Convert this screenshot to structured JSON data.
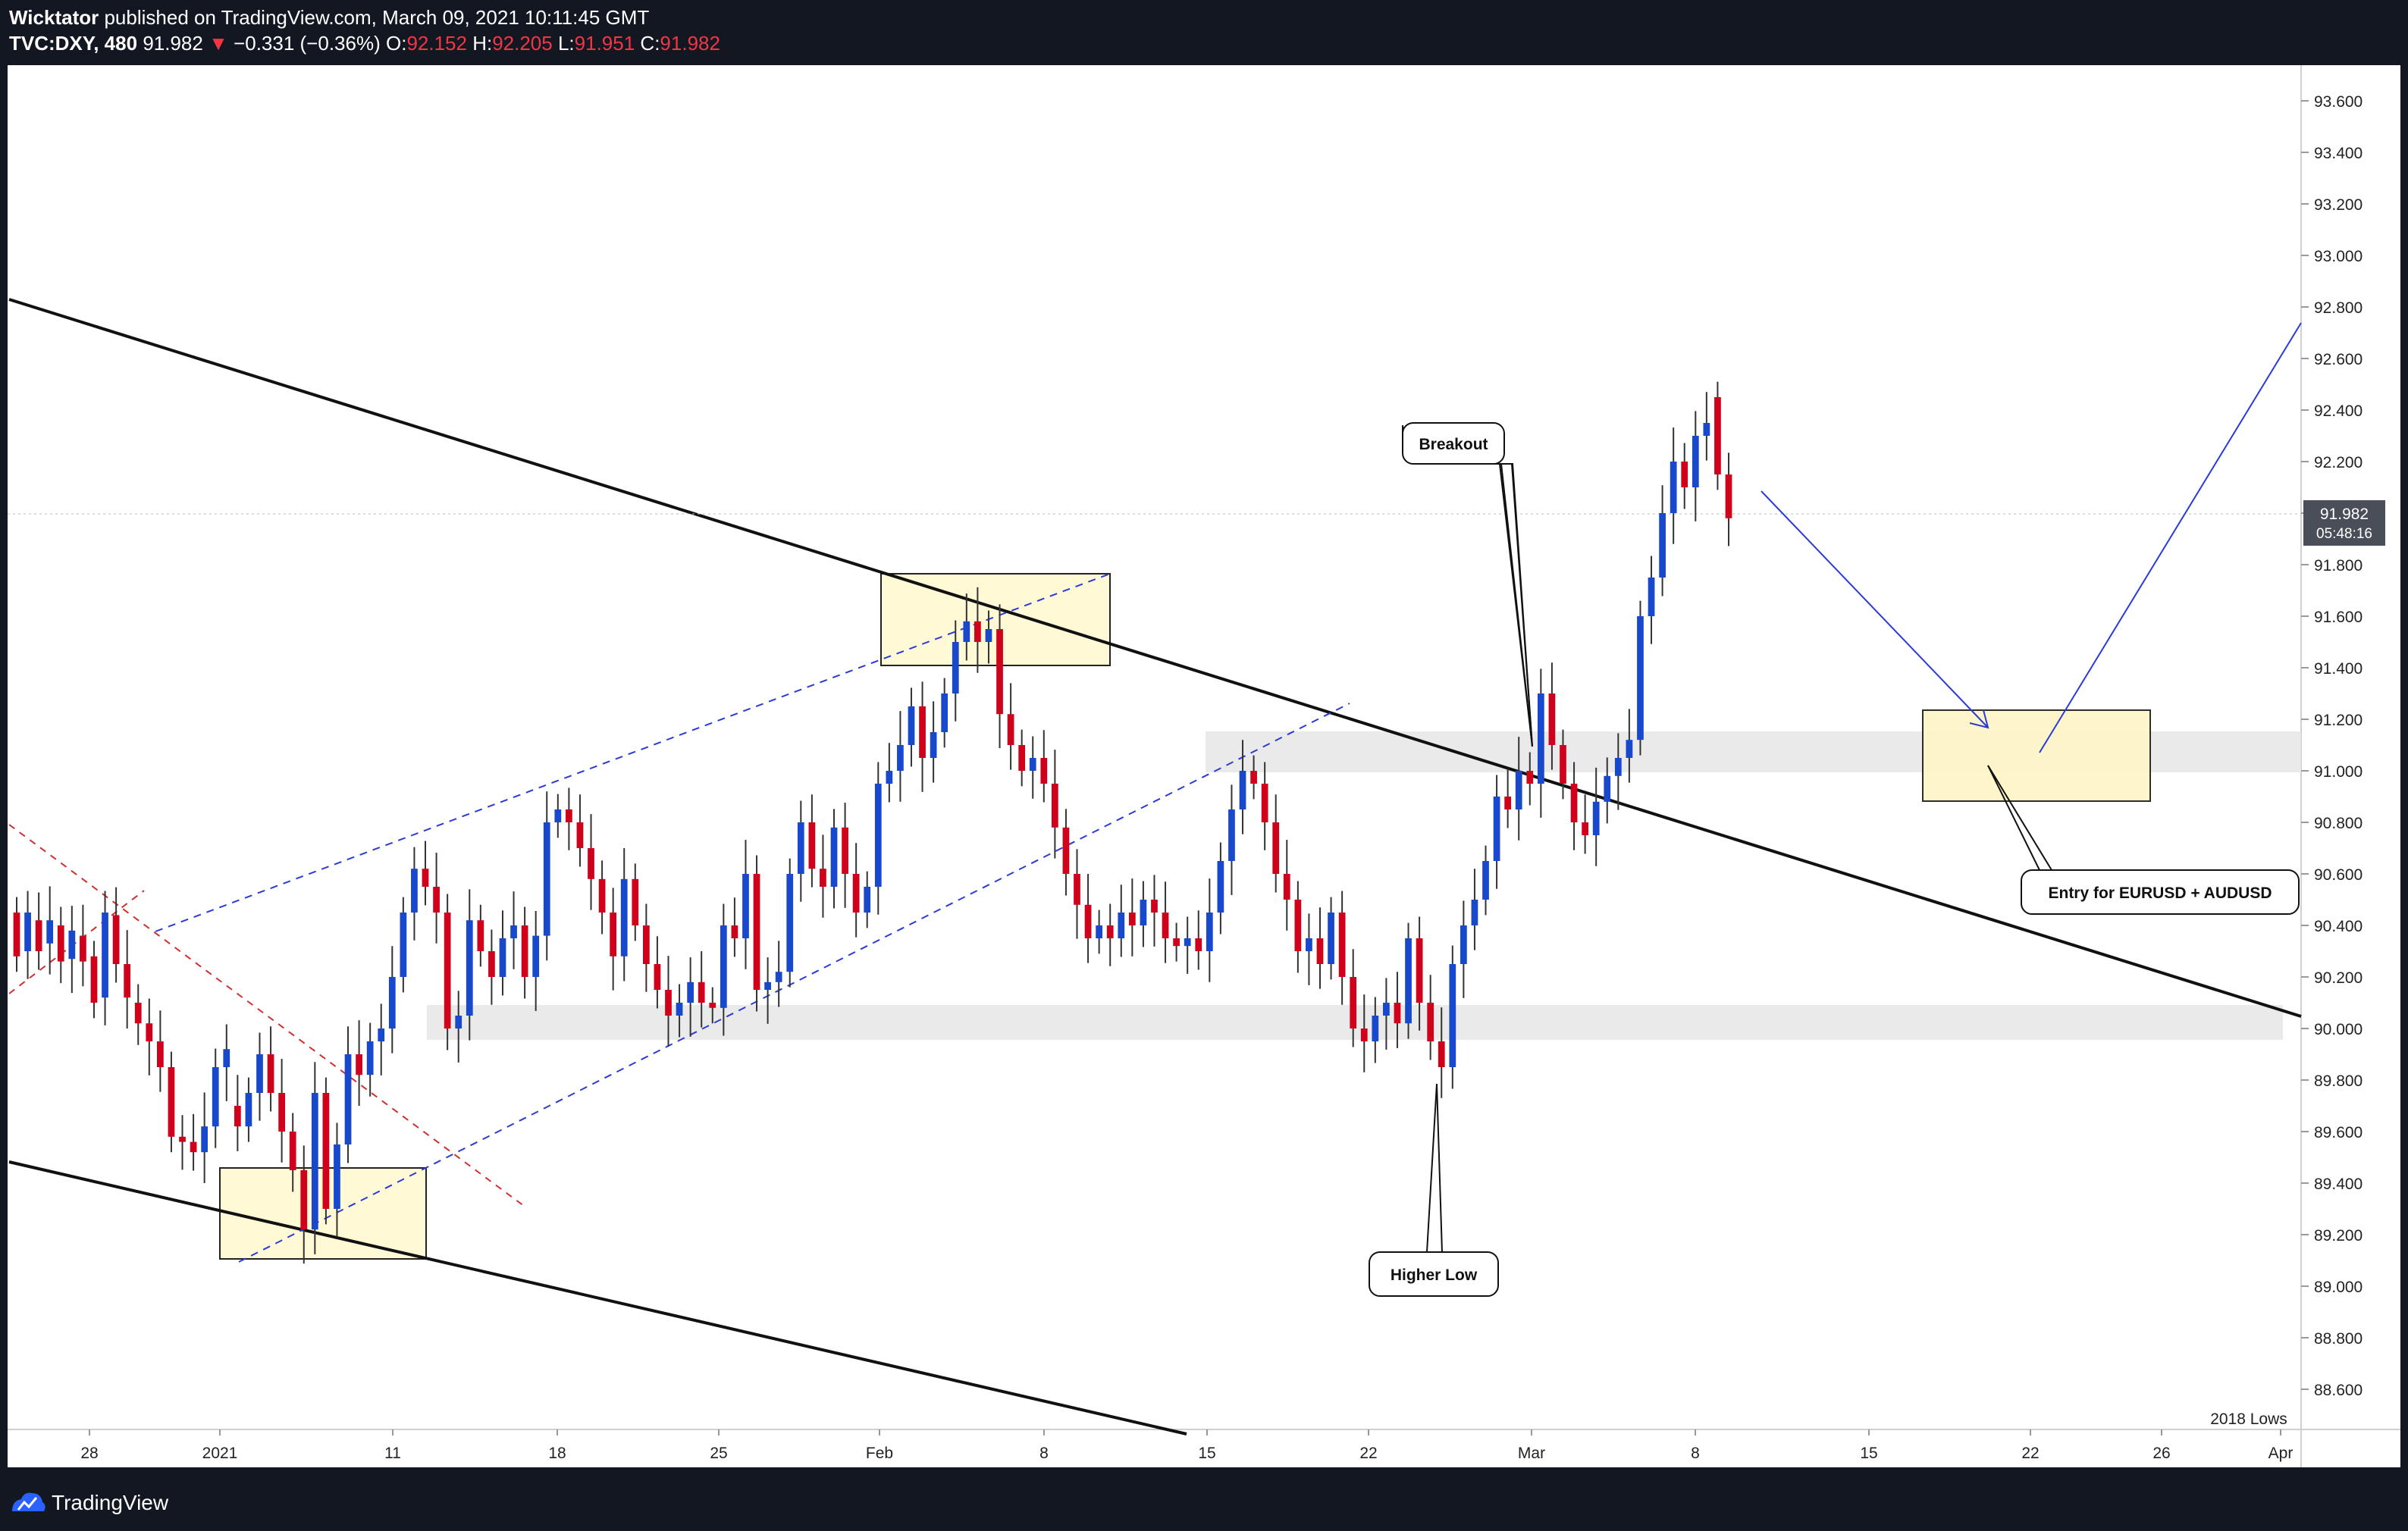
{
  "header": {
    "publisher": "Wicktator",
    "published_text": "published on TradingView.com, March 09, 2021 10:11:45 GMT",
    "symbol": "TVC:DXY, 480",
    "last": "91.982",
    "change_arrow": "▼",
    "change": "−0.331 (−0.36%)",
    "o_label": "O:",
    "o_value": "92.152",
    "h_label": "H:",
    "h_value": "92.205",
    "l_label": "L:",
    "l_value": "91.951",
    "c_label": "C:",
    "c_value": "91.982"
  },
  "footer": {
    "brand": "TradingView",
    "logo_icon": "tradingview-logo-icon"
  },
  "colors": {
    "up": "#1848cc",
    "down": "#d0021b",
    "shade": "#e5e5e5",
    "box": "#fff9d6",
    "channel": "#2a3bd8",
    "red_dash": "#d03030"
  },
  "chart_data": {
    "type": "candlestick",
    "y_range": [
      88.4,
      93.8
    ],
    "y_ticks": [
      "93.600",
      "93.400",
      "93.200",
      "93.000",
      "92.800",
      "92.600",
      "92.400",
      "92.200",
      "92.000",
      "91.800",
      "91.600",
      "91.400",
      "91.200",
      "91.000",
      "90.800",
      "90.600",
      "90.400",
      "90.200",
      "90.000",
      "89.800",
      "89.600",
      "89.400",
      "89.200",
      "89.000",
      "88.800",
      "88.600"
    ],
    "x_ticks": [
      "28",
      "2021",
      "11",
      "18",
      "25",
      "Feb",
      "8",
      "15",
      "22",
      "Mar",
      "8",
      "15",
      "22",
      "26",
      "Apr"
    ],
    "price_label": "91.982",
    "countdown_label": "05:48:16",
    "annotations": {
      "breakout": "Breakout",
      "higher_low": "Higher Low",
      "entry": "Entry for EURUSD + AUDUSD",
      "lows_2018": "2018 Lows"
    },
    "candles": [
      [
        90.45,
        90.28
      ],
      [
        90.3,
        90.45
      ],
      [
        90.42,
        90.3
      ],
      [
        90.33,
        90.42
      ],
      [
        90.4,
        90.26
      ],
      [
        90.27,
        90.38
      ],
      [
        90.36,
        90.26
      ],
      [
        90.28,
        90.1
      ],
      [
        90.12,
        90.45
      ],
      [
        90.44,
        90.25
      ],
      [
        90.25,
        90.12
      ],
      [
        90.1,
        90.02
      ],
      [
        90.02,
        89.95
      ],
      [
        89.95,
        89.85
      ],
      [
        89.85,
        89.58
      ],
      [
        89.58,
        89.56
      ],
      [
        89.56,
        89.52
      ],
      [
        89.52,
        89.62
      ],
      [
        89.62,
        89.85
      ],
      [
        89.85,
        89.92
      ],
      [
        89.7,
        89.62
      ],
      [
        89.62,
        89.75
      ],
      [
        89.75,
        89.9
      ],
      [
        89.9,
        89.75
      ],
      [
        89.75,
        89.6
      ],
      [
        89.6,
        89.45
      ],
      [
        89.45,
        89.22
      ],
      [
        89.22,
        89.75
      ],
      [
        89.75,
        89.3
      ],
      [
        89.3,
        89.55
      ],
      [
        89.55,
        89.9
      ],
      [
        89.9,
        89.82
      ],
      [
        89.82,
        89.95
      ],
      [
        89.95,
        90.0
      ],
      [
        90.0,
        90.2
      ],
      [
        90.2,
        90.45
      ],
      [
        90.45,
        90.62
      ],
      [
        90.62,
        90.55
      ],
      [
        90.55,
        90.45
      ],
      [
        90.45,
        90.0
      ],
      [
        90.0,
        90.05
      ],
      [
        90.05,
        90.42
      ],
      [
        90.42,
        90.3
      ],
      [
        90.3,
        90.2
      ],
      [
        90.2,
        90.35
      ],
      [
        90.35,
        90.4
      ],
      [
        90.4,
        90.2
      ],
      [
        90.2,
        90.36
      ],
      [
        90.36,
        90.8
      ],
      [
        90.8,
        90.85
      ],
      [
        90.85,
        90.8
      ],
      [
        90.8,
        90.7
      ],
      [
        90.7,
        90.58
      ],
      [
        90.58,
        90.45
      ],
      [
        90.45,
        90.28
      ],
      [
        90.28,
        90.58
      ],
      [
        90.58,
        90.4
      ],
      [
        90.4,
        90.25
      ],
      [
        90.25,
        90.15
      ],
      [
        90.15,
        90.05
      ],
      [
        90.05,
        90.1
      ],
      [
        90.1,
        90.18
      ],
      [
        90.18,
        90.1
      ],
      [
        90.1,
        90.08
      ],
      [
        90.08,
        90.4
      ],
      [
        90.4,
        90.35
      ],
      [
        90.35,
        90.6
      ],
      [
        90.6,
        90.15
      ],
      [
        90.15,
        90.18
      ],
      [
        90.18,
        90.22
      ],
      [
        90.22,
        90.6
      ],
      [
        90.6,
        90.8
      ],
      [
        90.8,
        90.62
      ],
      [
        90.62,
        90.55
      ],
      [
        90.55,
        90.78
      ],
      [
        90.78,
        90.6
      ],
      [
        90.6,
        90.45
      ],
      [
        90.45,
        90.55
      ],
      [
        90.55,
        90.95
      ],
      [
        90.95,
        91.0
      ],
      [
        91.0,
        91.1
      ],
      [
        91.1,
        91.25
      ],
      [
        91.25,
        91.05
      ],
      [
        91.05,
        91.15
      ],
      [
        91.15,
        91.3
      ],
      [
        91.3,
        91.5
      ],
      [
        91.5,
        91.58
      ],
      [
        91.58,
        91.5
      ],
      [
        91.5,
        91.55
      ],
      [
        91.55,
        91.22
      ],
      [
        91.22,
        91.1
      ],
      [
        91.1,
        91.0
      ],
      [
        91.0,
        91.05
      ],
      [
        91.05,
        90.95
      ],
      [
        90.95,
        90.78
      ],
      [
        90.78,
        90.6
      ],
      [
        90.6,
        90.48
      ],
      [
        90.48,
        90.35
      ],
      [
        90.35,
        90.4
      ],
      [
        90.4,
        90.35
      ],
      [
        90.35,
        90.45
      ],
      [
        90.45,
        90.4
      ],
      [
        90.4,
        90.5
      ],
      [
        90.5,
        90.45
      ],
      [
        90.45,
        90.35
      ],
      [
        90.35,
        90.32
      ],
      [
        90.32,
        90.35
      ],
      [
        90.35,
        90.3
      ],
      [
        90.3,
        90.45
      ],
      [
        90.45,
        90.65
      ],
      [
        90.65,
        90.85
      ],
      [
        90.85,
        91.0
      ],
      [
        91.0,
        90.95
      ],
      [
        90.95,
        90.8
      ],
      [
        90.8,
        90.6
      ],
      [
        90.6,
        90.5
      ],
      [
        90.5,
        90.3
      ],
      [
        90.3,
        90.35
      ],
      [
        90.35,
        90.25
      ],
      [
        90.25,
        90.45
      ],
      [
        90.45,
        90.2
      ],
      [
        90.2,
        90.0
      ],
      [
        90.0,
        89.95
      ],
      [
        89.95,
        90.05
      ],
      [
        90.05,
        90.1
      ],
      [
        90.1,
        90.02
      ],
      [
        90.02,
        90.35
      ],
      [
        90.35,
        90.1
      ],
      [
        90.1,
        89.95
      ],
      [
        89.95,
        89.85
      ],
      [
        89.85,
        90.25
      ],
      [
        90.25,
        90.4
      ],
      [
        90.4,
        90.5
      ],
      [
        90.5,
        90.65
      ],
      [
        90.65,
        90.9
      ],
      [
        90.9,
        90.85
      ],
      [
        90.85,
        91.0
      ],
      [
        91.0,
        90.95
      ],
      [
        90.95,
        91.3
      ],
      [
        91.3,
        91.1
      ],
      [
        91.1,
        90.95
      ],
      [
        90.95,
        90.8
      ],
      [
        90.8,
        90.75
      ],
      [
        90.75,
        90.88
      ],
      [
        90.88,
        90.98
      ],
      [
        90.98,
        91.05
      ],
      [
        91.05,
        91.12
      ],
      [
        91.12,
        91.6
      ],
      [
        91.6,
        91.75
      ],
      [
        91.75,
        92.0
      ],
      [
        92.0,
        92.2
      ],
      [
        92.2,
        92.1
      ],
      [
        92.1,
        92.3
      ],
      [
        92.3,
        92.35
      ],
      [
        92.45,
        92.15
      ],
      [
        92.15,
        91.98
      ]
    ]
  }
}
